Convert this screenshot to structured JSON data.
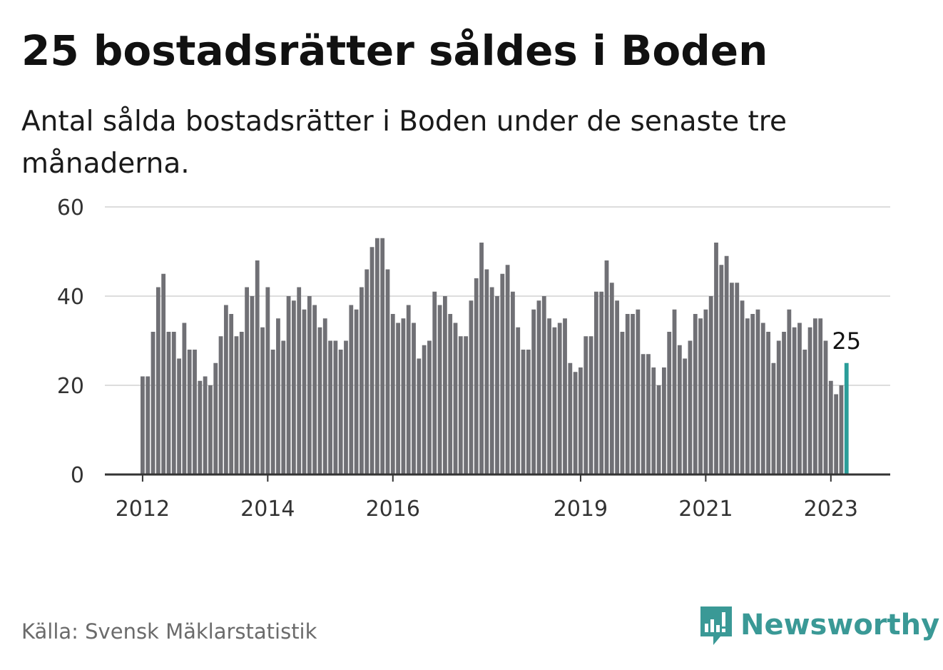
{
  "title": "25 bostadsrätter såldes i Boden",
  "subtitle": "Antal sålda bostadsrätter i Boden under de senaste tre månaderna.",
  "source": "Källa: Svensk Mäklarstatistik",
  "brand": {
    "name": "Newsworthy",
    "icon": "newsworthy-logo-icon"
  },
  "colors": {
    "bar": "#707075",
    "highlight": "#2a9d99",
    "grid": "#dddddd",
    "axis": "#333333",
    "brand": "#3a9996"
  },
  "chart_data": {
    "type": "bar",
    "title": "25 bostadsrätter såldes i Boden",
    "ylim": [
      0,
      60
    ],
    "yticks": [
      0,
      20,
      40,
      60
    ],
    "xticks": [
      "2012",
      "2014",
      "2016",
      "2019",
      "2021",
      "2023"
    ],
    "grid": true,
    "annotation": {
      "label": "25",
      "value": 25
    },
    "values": [
      22,
      22,
      32,
      42,
      45,
      32,
      32,
      26,
      34,
      28,
      28,
      21,
      22,
      20,
      25,
      31,
      38,
      36,
      31,
      32,
      42,
      40,
      48,
      33,
      42,
      28,
      35,
      30,
      40,
      39,
      42,
      37,
      40,
      38,
      33,
      35,
      30,
      30,
      28,
      30,
      38,
      37,
      42,
      46,
      51,
      53,
      53,
      46,
      36,
      34,
      35,
      38,
      34,
      26,
      29,
      30,
      41,
      38,
      40,
      36,
      34,
      31,
      31,
      39,
      44,
      52,
      46,
      42,
      40,
      45,
      47,
      41,
      33,
      28,
      28,
      37,
      39,
      40,
      35,
      33,
      34,
      35,
      25,
      23,
      24,
      31,
      31,
      41,
      41,
      48,
      43,
      39,
      32,
      36,
      36,
      37,
      27,
      27,
      24,
      20,
      24,
      32,
      37,
      29,
      26,
      30,
      36,
      35,
      37,
      40,
      52,
      47,
      49,
      43,
      43,
      39,
      35,
      36,
      37,
      34,
      32,
      25,
      30,
      32,
      37,
      33,
      34,
      28,
      33,
      35,
      35,
      30,
      21,
      18,
      20,
      25
    ]
  }
}
